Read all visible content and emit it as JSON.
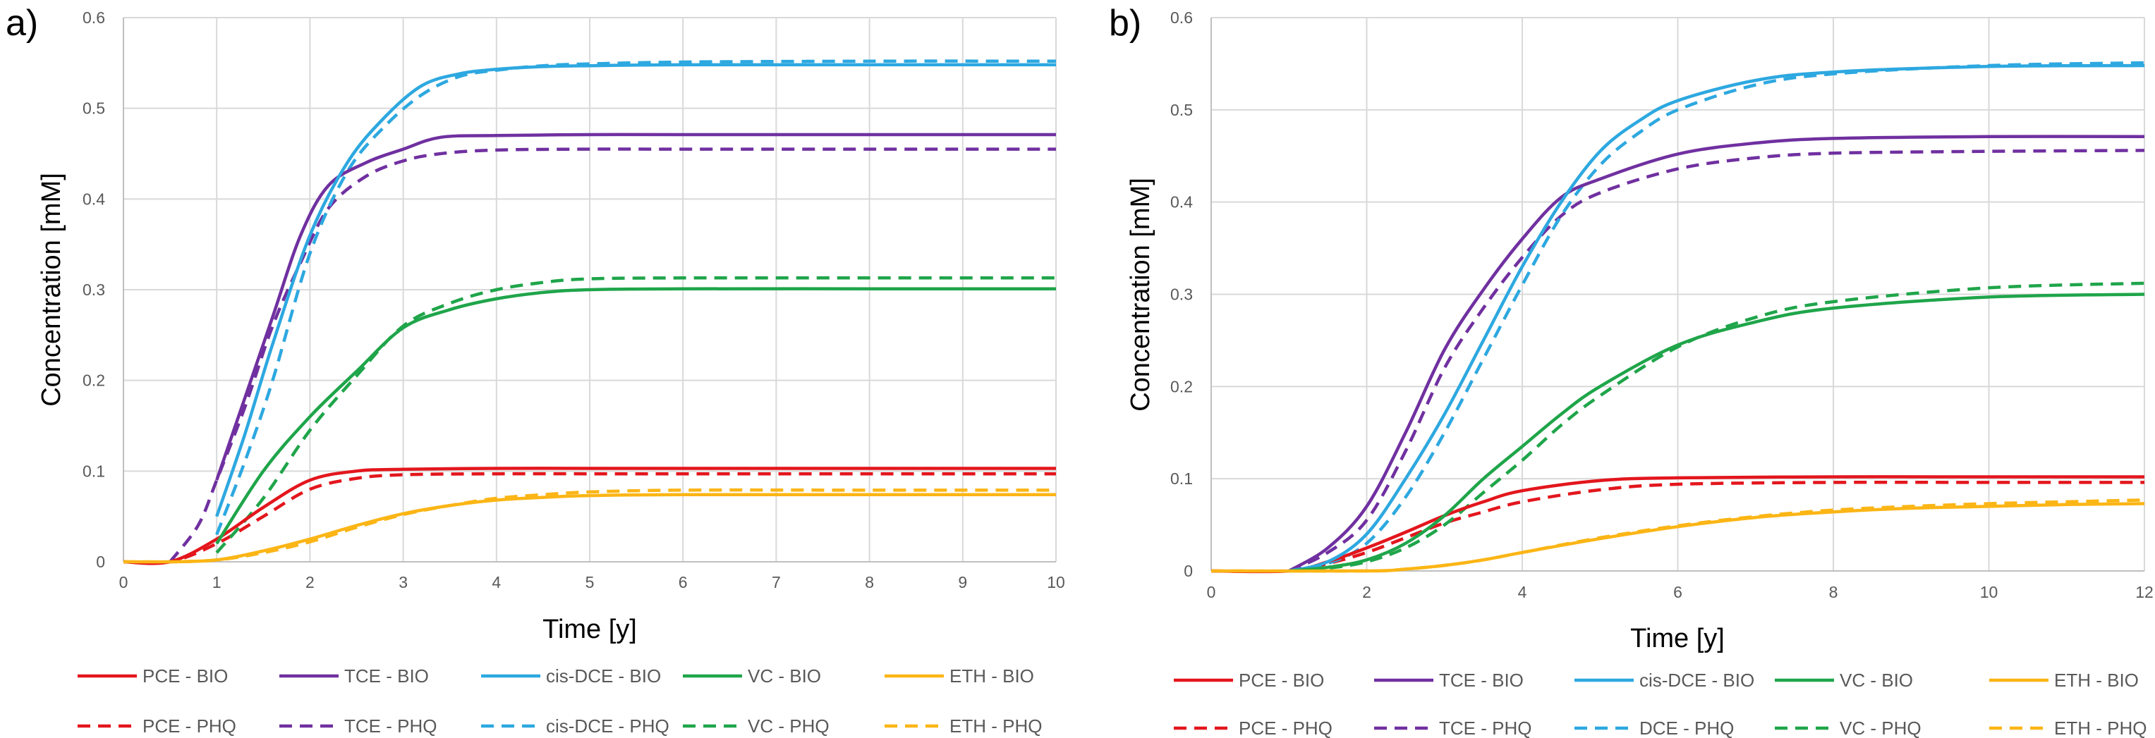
{
  "figure": {
    "panels": [
      "a)",
      "b)"
    ]
  },
  "colors": {
    "PCE": "#e3161d",
    "TCE": "#7030a0",
    "cis-DCE": "#2da8e0",
    "VC": "#1fa54a",
    "ETH": "#fbb515",
    "grid": "#d9d9d9",
    "axis": "#bfbfbf"
  },
  "chart_data": [
    {
      "type": "line",
      "panel": "a)",
      "xlabel": "Time [y]",
      "ylabel": "Concentration [mM]",
      "xlim": [
        0,
        10
      ],
      "ylim": [
        0,
        0.6
      ],
      "xticks": [
        0,
        1,
        2,
        3,
        4,
        5,
        6,
        7,
        8,
        9,
        10
      ],
      "yticks": [
        0,
        0.1,
        0.2,
        0.3,
        0.4,
        0.5,
        0.6
      ],
      "ytick_labels": [
        "0",
        "0.1",
        "0.2",
        "0.3",
        "0.4",
        "0.5",
        "0.6"
      ],
      "legend": {
        "placement": "bottom",
        "rows": [
          [
            "PCE - BIO",
            "TCE - BIO",
            "cis-DCE - BIO",
            "VC - BIO",
            "ETH - BIO"
          ],
          [
            "PCE - PHQ",
            "TCE - PHQ",
            "cis-DCE - PHQ",
            "VC - PHQ",
            "ETH - PHQ"
          ]
        ]
      },
      "series": [
        {
          "name": "PCE - BIO",
          "species": "PCE",
          "style": "solid",
          "x": [
            0,
            0.5,
            1,
            1.5,
            2,
            2.5,
            3,
            4,
            5,
            6,
            8,
            10
          ],
          "y": [
            0,
            0,
            0.025,
            0.06,
            0.09,
            0.1,
            0.102,
            0.103,
            0.103,
            0.103,
            0.103,
            0.103
          ]
        },
        {
          "name": "TCE - BIO",
          "species": "TCE",
          "style": "solid",
          "x": [
            1,
            1.3,
            1.6,
            1.9,
            2.2,
            2.6,
            3,
            3.4,
            4,
            5,
            6,
            8,
            10
          ],
          "y": [
            0.09,
            0.18,
            0.27,
            0.36,
            0.415,
            0.44,
            0.455,
            0.468,
            0.47,
            0.471,
            0.471,
            0.471,
            0.471
          ]
        },
        {
          "name": "cis-DCE - BIO",
          "species": "cis-DCE",
          "style": "solid",
          "x": [
            1,
            1.3,
            1.6,
            2,
            2.4,
            2.8,
            3.2,
            3.6,
            4,
            4.5,
            5,
            6,
            8,
            10
          ],
          "y": [
            0.05,
            0.14,
            0.24,
            0.36,
            0.44,
            0.49,
            0.525,
            0.538,
            0.543,
            0.546,
            0.547,
            0.548,
            0.548,
            0.548
          ]
        },
        {
          "name": "VC - BIO",
          "species": "VC",
          "style": "solid",
          "x": [
            1,
            1.5,
            2,
            2.5,
            3,
            3.5,
            4,
            4.5,
            5,
            6,
            8,
            10
          ],
          "y": [
            0.02,
            0.1,
            0.16,
            0.21,
            0.258,
            0.278,
            0.29,
            0.297,
            0.3,
            0.301,
            0.301,
            0.301
          ]
        },
        {
          "name": "ETH - BIO",
          "species": "ETH",
          "style": "solid",
          "x": [
            0,
            0.5,
            1,
            1.5,
            2,
            2.5,
            3,
            3.5,
            4,
            4.5,
            5,
            6,
            8,
            10
          ],
          "y": [
            0,
            0,
            0.002,
            0.012,
            0.025,
            0.04,
            0.053,
            0.062,
            0.068,
            0.071,
            0.073,
            0.074,
            0.074,
            0.074
          ]
        },
        {
          "name": "PCE - PHQ",
          "species": "PCE",
          "style": "dashed",
          "x": [
            0,
            0.5,
            1,
            1.5,
            2,
            2.5,
            3,
            4,
            5,
            6,
            8,
            10
          ],
          "y": [
            0,
            0,
            0.02,
            0.05,
            0.08,
            0.092,
            0.096,
            0.097,
            0.097,
            0.097,
            0.097,
            0.097
          ]
        },
        {
          "name": "TCE - PHQ",
          "species": "TCE",
          "style": "dashed",
          "x": [
            0.5,
            0.8,
            1,
            1.3,
            1.6,
            1.9,
            2.2,
            2.6,
            3,
            3.4,
            4,
            5,
            6,
            8,
            10
          ],
          "y": [
            0,
            0.04,
            0.09,
            0.17,
            0.26,
            0.33,
            0.39,
            0.425,
            0.442,
            0.45,
            0.454,
            0.455,
            0.455,
            0.455,
            0.455
          ]
        },
        {
          "name": "cis-DCE - PHQ",
          "species": "cis-DCE",
          "style": "dashed",
          "x": [
            1,
            1.3,
            1.6,
            2,
            2.4,
            2.8,
            3.2,
            3.6,
            4,
            4.5,
            5,
            6,
            8,
            10
          ],
          "y": [
            0.03,
            0.11,
            0.2,
            0.34,
            0.43,
            0.48,
            0.515,
            0.535,
            0.542,
            0.547,
            0.549,
            0.551,
            0.552,
            0.552
          ]
        },
        {
          "name": "VC - PHQ",
          "species": "VC",
          "style": "dashed",
          "x": [
            1,
            1.5,
            2,
            2.5,
            3,
            3.5,
            4,
            4.5,
            5,
            6,
            8,
            10
          ],
          "y": [
            0.01,
            0.07,
            0.145,
            0.205,
            0.26,
            0.285,
            0.3,
            0.308,
            0.312,
            0.313,
            0.313,
            0.313
          ]
        },
        {
          "name": "ETH - PHQ",
          "species": "ETH",
          "style": "dashed",
          "x": [
            0,
            0.5,
            1,
            1.5,
            2,
            2.5,
            3,
            3.5,
            4,
            4.5,
            5,
            6,
            8,
            10
          ],
          "y": [
            0,
            0,
            0.002,
            0.01,
            0.022,
            0.038,
            0.052,
            0.062,
            0.07,
            0.074,
            0.077,
            0.079,
            0.079,
            0.079
          ]
        }
      ]
    },
    {
      "type": "line",
      "panel": "b)",
      "xlabel": "Time [y]",
      "ylabel": "Concentration [mM]",
      "xlim": [
        0,
        12
      ],
      "ylim": [
        0,
        0.6
      ],
      "xticks": [
        0,
        2,
        4,
        6,
        8,
        10,
        12
      ],
      "yticks": [
        0,
        0.1,
        0.2,
        0.3,
        0.4,
        0.5,
        0.6
      ],
      "ytick_labels": [
        "0",
        "0.1",
        "0.2",
        "0.3",
        "0.4",
        "0.5",
        "0.6"
      ],
      "legend": {
        "placement": "bottom",
        "rows": [
          [
            "PCE - BIO",
            "TCE - BIO",
            "cis-DCE - BIO",
            "VC - BIO",
            "ETH - BIO"
          ],
          [
            "PCE - PHQ",
            "TCE - PHQ",
            "DCE - PHQ",
            "VC - PHQ",
            "ETH - PHQ"
          ]
        ]
      },
      "series": [
        {
          "name": "PCE - BIO",
          "species": "PCE",
          "style": "solid",
          "x": [
            0,
            1,
            1.5,
            2,
            2.5,
            3,
            3.5,
            4,
            5,
            6,
            8,
            10,
            12
          ],
          "y": [
            0,
            0,
            0.01,
            0.025,
            0.042,
            0.06,
            0.075,
            0.087,
            0.098,
            0.101,
            0.102,
            0.102,
            0.102
          ]
        },
        {
          "name": "TCE - BIO",
          "species": "TCE",
          "style": "solid",
          "x": [
            1,
            1.5,
            2,
            2.5,
            3,
            3.5,
            4,
            4.5,
            5,
            6,
            7,
            8,
            10,
            12
          ],
          "y": [
            0,
            0.025,
            0.07,
            0.15,
            0.24,
            0.305,
            0.36,
            0.405,
            0.425,
            0.452,
            0.464,
            0.469,
            0.471,
            0.471
          ]
        },
        {
          "name": "cis-DCE - BIO",
          "species": "cis-DCE",
          "style": "solid",
          "x": [
            1,
            1.5,
            2,
            2.5,
            3,
            3.5,
            4,
            4.5,
            5,
            5.5,
            6,
            7,
            8,
            10,
            12
          ],
          "y": [
            0,
            0.01,
            0.04,
            0.1,
            0.17,
            0.25,
            0.33,
            0.4,
            0.455,
            0.488,
            0.51,
            0.532,
            0.541,
            0.547,
            0.548
          ]
        },
        {
          "name": "VC - BIO",
          "species": "VC",
          "style": "solid",
          "x": [
            1,
            1.5,
            2,
            2.5,
            3,
            3.5,
            4,
            4.5,
            5,
            6,
            7,
            8,
            10,
            12
          ],
          "y": [
            0,
            0.004,
            0.012,
            0.03,
            0.06,
            0.1,
            0.135,
            0.17,
            0.2,
            0.245,
            0.27,
            0.285,
            0.297,
            0.3
          ]
        },
        {
          "name": "ETH - BIO",
          "species": "ETH",
          "style": "solid",
          "x": [
            0,
            2,
            2.5,
            3,
            3.5,
            4,
            5,
            6,
            7,
            8,
            9,
            10,
            11,
            12
          ],
          "y": [
            0,
            0,
            0.002,
            0.006,
            0.012,
            0.02,
            0.035,
            0.048,
            0.058,
            0.064,
            0.068,
            0.07,
            0.072,
            0.073
          ]
        },
        {
          "name": "PCE - PHQ",
          "species": "PCE",
          "style": "dashed",
          "x": [
            0,
            1,
            1.5,
            2,
            2.5,
            3,
            3.5,
            4,
            5,
            6,
            8,
            10,
            12
          ],
          "y": [
            0,
            0,
            0.008,
            0.02,
            0.036,
            0.052,
            0.064,
            0.075,
            0.088,
            0.094,
            0.096,
            0.096,
            0.096
          ]
        },
        {
          "name": "TCE - PHQ",
          "species": "TCE",
          "style": "dashed",
          "x": [
            1,
            1.5,
            2,
            2.5,
            3,
            3.5,
            4,
            4.5,
            5,
            6,
            7,
            8,
            10,
            12
          ],
          "y": [
            0,
            0.02,
            0.055,
            0.13,
            0.22,
            0.285,
            0.34,
            0.385,
            0.41,
            0.436,
            0.448,
            0.453,
            0.455,
            0.456
          ]
        },
        {
          "name": "DCE - PHQ",
          "species": "cis-DCE",
          "style": "dashed",
          "x": [
            1,
            1.5,
            2,
            2.5,
            3,
            3.5,
            4,
            4.5,
            5,
            5.5,
            6,
            7,
            8,
            10,
            12
          ],
          "y": [
            0,
            0.008,
            0.03,
            0.08,
            0.15,
            0.23,
            0.31,
            0.385,
            0.44,
            0.475,
            0.5,
            0.527,
            0.539,
            0.548,
            0.551
          ]
        },
        {
          "name": "VC - PHQ",
          "species": "VC",
          "style": "dashed",
          "x": [
            1,
            1.5,
            2,
            2.5,
            3,
            3.5,
            4,
            4.5,
            5,
            6,
            7,
            8,
            10,
            12
          ],
          "y": [
            0,
            0.003,
            0.01,
            0.025,
            0.05,
            0.085,
            0.12,
            0.158,
            0.19,
            0.243,
            0.275,
            0.292,
            0.307,
            0.312
          ]
        },
        {
          "name": "ETH - PHQ",
          "species": "ETH",
          "style": "dashed",
          "x": [
            0,
            2,
            2.5,
            3,
            3.5,
            4,
            5,
            6,
            7,
            8,
            9,
            10,
            11,
            12
          ],
          "y": [
            0,
            0,
            0.002,
            0.006,
            0.012,
            0.02,
            0.036,
            0.049,
            0.059,
            0.066,
            0.07,
            0.073,
            0.075,
            0.077
          ]
        }
      ]
    }
  ]
}
